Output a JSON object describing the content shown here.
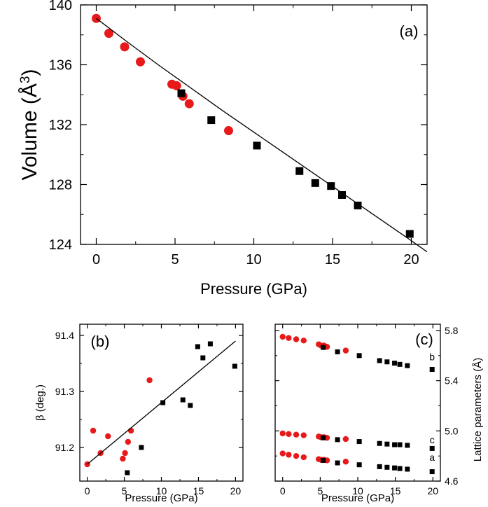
{
  "chart_data": [
    {
      "id": "a",
      "type": "scatter",
      "panel_label": "(a)",
      "xlabel": "Pressure (GPa)",
      "ylabel": "Volume (Å3)",
      "xlim": [
        -1,
        21
      ],
      "ylim": [
        124,
        140
      ],
      "xticks": [
        "0",
        "5",
        "10",
        "15",
        "20"
      ],
      "yticks": [
        "124",
        "128",
        "132",
        "136",
        "140"
      ],
      "colors": {
        "series1": "#e8191a",
        "series2": "#000000",
        "fit": "#000000"
      },
      "series": [
        {
          "marker": "circle",
          "x": [
            0,
            0.8,
            1.8,
            2.8,
            4.8,
            5.1,
            5.5,
            5.9,
            8.4
          ],
          "y": [
            139.1,
            138.1,
            137.2,
            136.2,
            134.7,
            134.6,
            133.9,
            133.4,
            131.6
          ]
        },
        {
          "marker": "square",
          "x": [
            5.4,
            7.3,
            10.2,
            12.9,
            13.9,
            14.9,
            15.6,
            16.6,
            19.9
          ],
          "y": [
            134.1,
            132.3,
            130.6,
            128.9,
            128.1,
            127.9,
            127.3,
            126.6,
            124.7
          ]
        },
        {
          "marker": "line",
          "x": [
            0,
            2,
            4,
            6,
            8,
            10,
            12,
            14,
            16,
            18,
            20,
            21
          ],
          "y": [
            139.1,
            137.5,
            135.95,
            134.45,
            132.95,
            131.5,
            130.05,
            128.6,
            127.15,
            125.7,
            124.25,
            123.5
          ]
        }
      ]
    },
    {
      "id": "b",
      "type": "scatter",
      "panel_label": "(b)",
      "xlabel": "Pressure (GPa)",
      "ylabel": "β (deg.)",
      "xlim": [
        -1,
        21
      ],
      "ylim": [
        91.14,
        91.42
      ],
      "xticks": [
        "0",
        "5",
        "10",
        "15",
        "20"
      ],
      "yticks": [
        "91.2",
        "91.3",
        "91.4"
      ],
      "colors": {
        "series1": "#e8191a",
        "series2": "#000000",
        "fit": "#000000"
      },
      "series": [
        {
          "marker": "circle",
          "x": [
            0,
            0.8,
            1.8,
            2.8,
            4.8,
            5.1,
            5.5,
            5.9,
            8.4
          ],
          "y": [
            91.17,
            91.23,
            91.19,
            91.22,
            91.18,
            91.19,
            91.21,
            91.23,
            91.32
          ]
        },
        {
          "marker": "square",
          "x": [
            5.4,
            7.3,
            10.2,
            12.9,
            13.9,
            14.9,
            15.6,
            16.6,
            19.9
          ],
          "y": [
            91.155,
            91.2,
            91.28,
            91.285,
            91.275,
            91.38,
            91.36,
            91.385,
            91.345
          ]
        },
        {
          "marker": "line",
          "x": [
            0,
            20
          ],
          "y": [
            91.17,
            91.39
          ]
        }
      ]
    },
    {
      "id": "c",
      "type": "scatter",
      "panel_label": "(c)",
      "xlabel": "Pressure (GPa)",
      "ylabel": "Lattice parameters (Å)",
      "xlim": [
        -1,
        21
      ],
      "ylim": [
        4.6,
        5.85
      ],
      "xticks": [
        "0",
        "5",
        "10",
        "15",
        "20"
      ],
      "yticks": [
        "4.6",
        "5.0",
        "5.4",
        "5.8"
      ],
      "series_labels": [
        "b",
        "c",
        "a"
      ],
      "colors": {
        "series1": "#e8191a",
        "series2": "#000000"
      },
      "series": [
        {
          "name": "b",
          "marker": "circle",
          "x": [
            0,
            0.8,
            1.8,
            2.8,
            4.8,
            5.1,
            5.5,
            5.9,
            8.4
          ],
          "y": [
            5.75,
            5.74,
            5.73,
            5.72,
            5.69,
            5.68,
            5.68,
            5.67,
            5.64
          ]
        },
        {
          "name": "b",
          "marker": "square",
          "x": [
            5.4,
            7.3,
            10.2,
            12.9,
            13.9,
            14.9,
            15.6,
            16.6,
            19.9
          ],
          "y": [
            5.665,
            5.63,
            5.6,
            5.56,
            5.55,
            5.54,
            5.53,
            5.52,
            5.49
          ]
        },
        {
          "name": "c",
          "marker": "circle",
          "x": [
            0,
            0.8,
            1.8,
            2.8,
            4.8,
            5.1,
            5.5,
            5.9,
            8.4
          ],
          "y": [
            4.98,
            4.975,
            4.97,
            4.965,
            4.955,
            4.95,
            4.95,
            4.945,
            4.935
          ]
        },
        {
          "name": "c",
          "marker": "square",
          "x": [
            5.4,
            7.3,
            10.2,
            12.9,
            13.9,
            14.9,
            15.6,
            16.6,
            19.9
          ],
          "y": [
            4.945,
            4.93,
            4.915,
            4.9,
            4.895,
            4.89,
            4.89,
            4.885,
            4.86
          ]
        },
        {
          "name": "a",
          "marker": "circle",
          "x": [
            0,
            0.8,
            1.8,
            2.8,
            4.8,
            5.1,
            5.5,
            5.9,
            8.4
          ],
          "y": [
            4.82,
            4.81,
            4.8,
            4.79,
            4.775,
            4.77,
            4.77,
            4.765,
            4.755
          ]
        },
        {
          "name": "a",
          "marker": "square",
          "x": [
            5.4,
            7.3,
            10.2,
            12.9,
            13.9,
            14.9,
            15.6,
            16.6,
            19.9
          ],
          "y": [
            4.765,
            4.745,
            4.73,
            4.715,
            4.71,
            4.705,
            4.7,
            4.695,
            4.675
          ]
        }
      ]
    }
  ]
}
